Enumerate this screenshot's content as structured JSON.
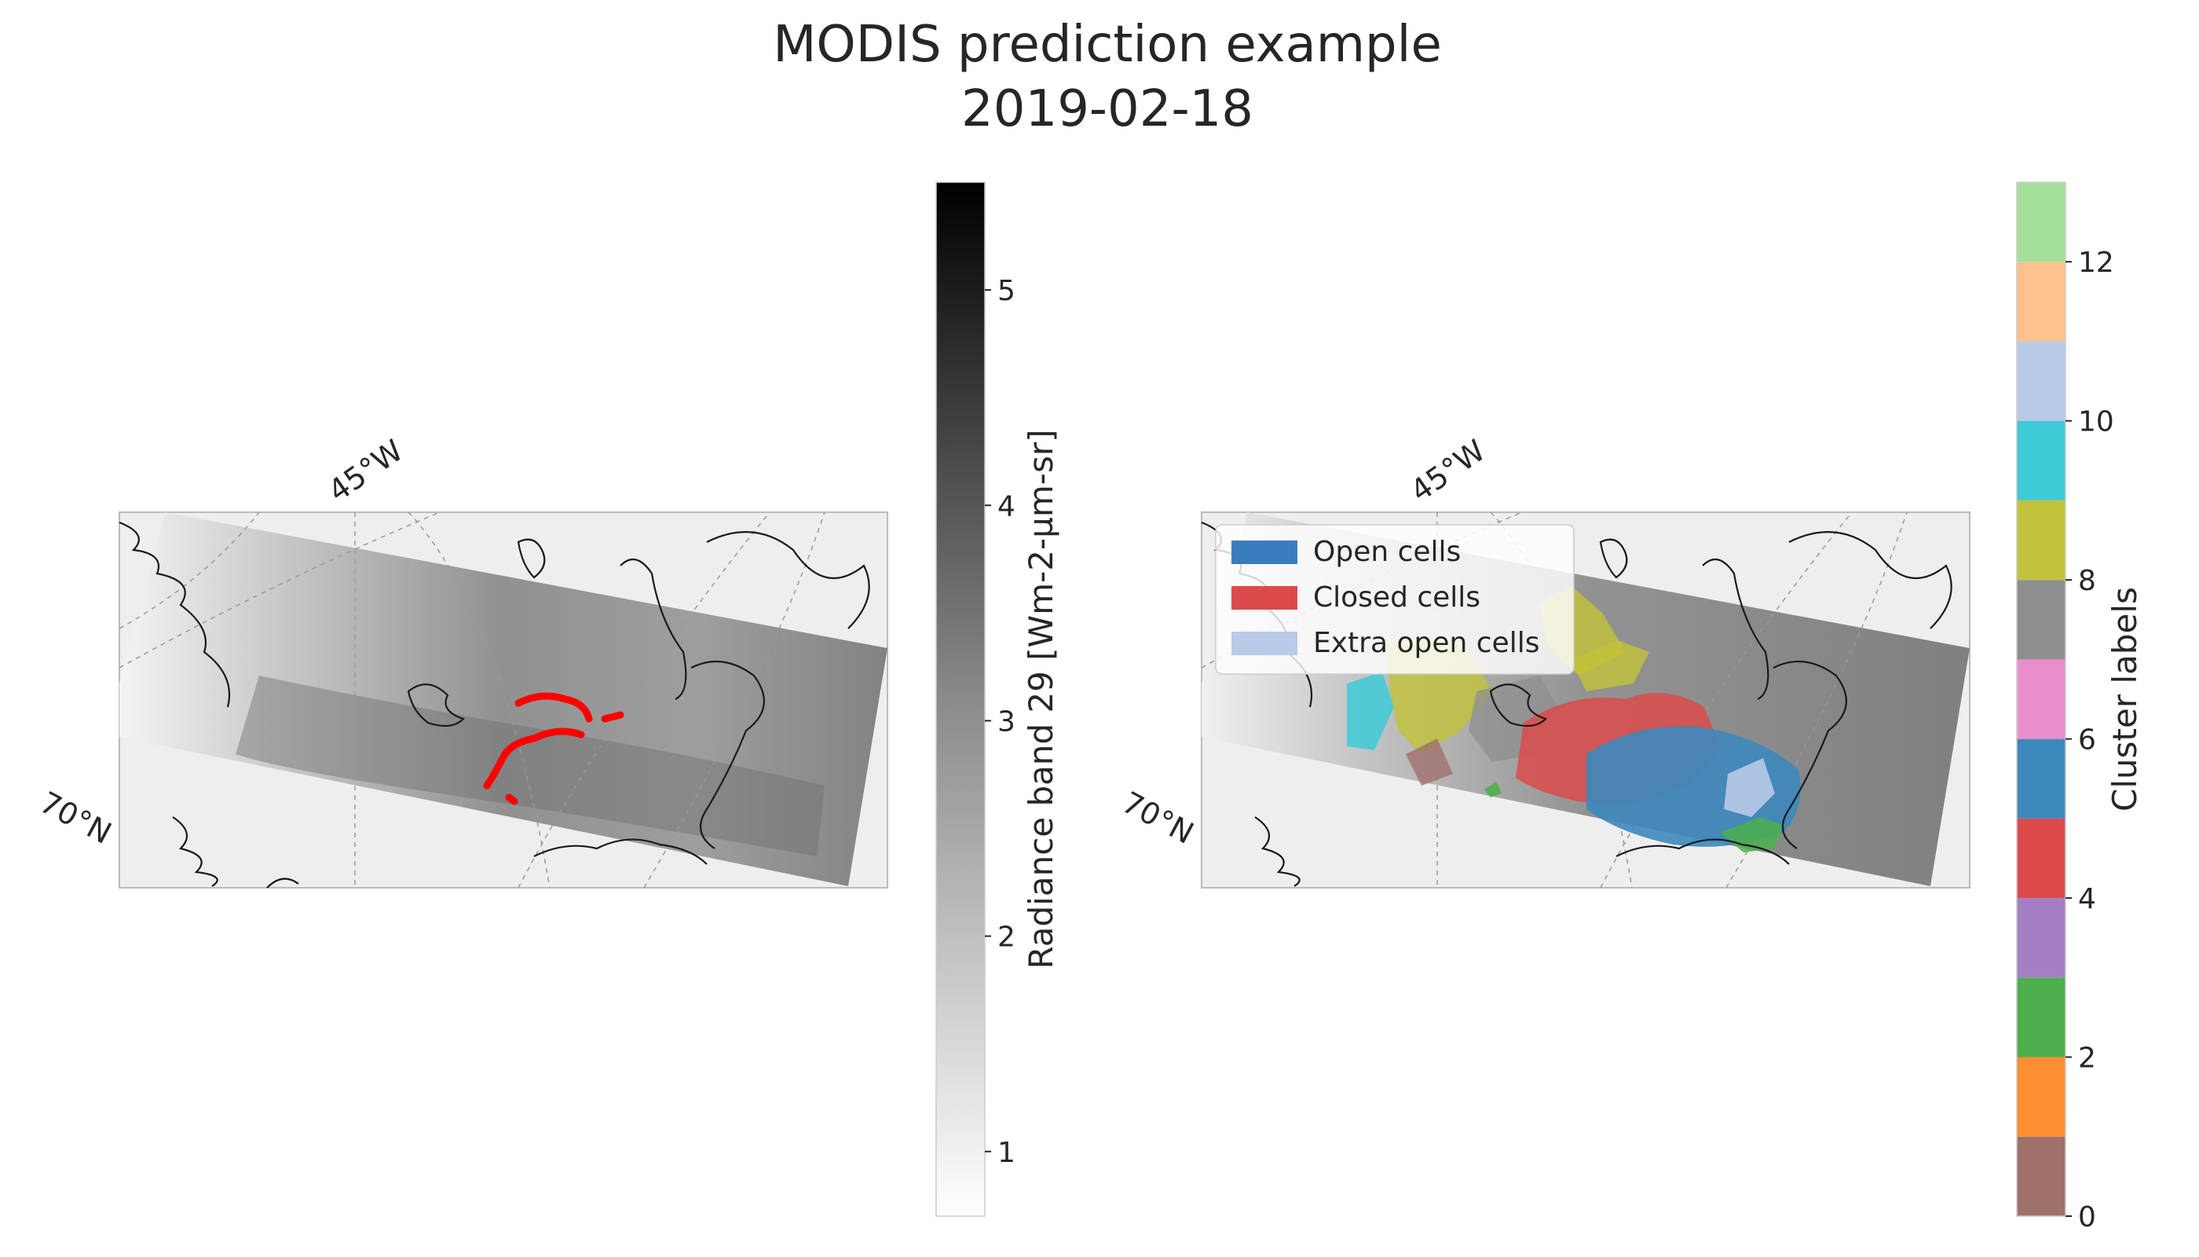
{
  "title": {
    "line1": "MODIS prediction example",
    "line2": "2019-02-18"
  },
  "left_panel": {
    "lon_label": "45°W",
    "lat_label": "70°N",
    "colorbar": {
      "label": "Radiance band 29 [Wm-2-µm-sr]",
      "min": 0.7,
      "max": 5.5,
      "ticks": [
        "1",
        "2",
        "3",
        "4",
        "5"
      ],
      "colormap": "Greys"
    }
  },
  "right_panel": {
    "lon_label": "45°W",
    "lat_label": "70°N",
    "legend": {
      "items": [
        {
          "label": "Open cells",
          "color": "#3a7dbf"
        },
        {
          "label": "Closed cells",
          "color": "#dd4a4b"
        },
        {
          "label": "Extra open cells",
          "color": "#b8cce8"
        }
      ]
    },
    "colorbar": {
      "label": "Cluster labels",
      "min": 0,
      "max": 13,
      "ticks": [
        "0",
        "2",
        "4",
        "6",
        "8",
        "10",
        "12"
      ],
      "colors": [
        "#a0706b",
        "#ff8e32",
        "#4caf4c",
        "#a57fc6",
        "#dc4b4b",
        "#3c88bd",
        "#e88fcb",
        "#8f8f8f",
        "#c2c23a",
        "#3ecad6",
        "#b9cae9",
        "#fdc18c",
        "#a4e09a"
      ],
      "top_color": "#333333"
    }
  }
}
